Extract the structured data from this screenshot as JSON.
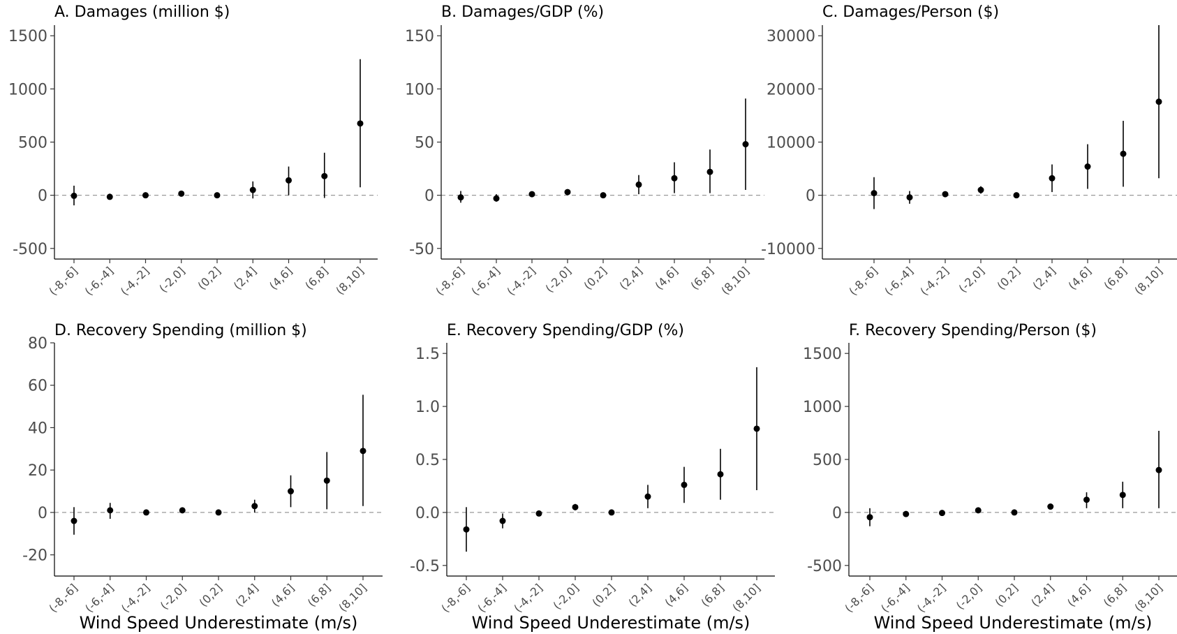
{
  "chart_data": [
    {
      "type": "scatter",
      "title": "A. Damages (million $)",
      "xlabel": "",
      "ylabel": "",
      "categories": [
        "(-8,-6]",
        "(-6,-4]",
        "(-4,-2]",
        "(-2,0]",
        "(0,2]",
        "(2,4]",
        "(4,6]",
        "(6,8]",
        "(8,10]"
      ],
      "values": [
        -5,
        -15,
        0,
        15,
        0,
        50,
        140,
        180,
        675
      ],
      "lower": [
        -95,
        -40,
        -10,
        -10,
        -10,
        -30,
        0,
        -25,
        75
      ],
      "upper": [
        90,
        15,
        10,
        40,
        10,
        130,
        270,
        400,
        1280
      ],
      "ylim": [
        -600,
        1600
      ],
      "yticks": [
        -500,
        0,
        500,
        1000,
        1500
      ],
      "ytick_labels": [
        "-500",
        "0",
        "500",
        "1000",
        "1500"
      ],
      "reference_line": 0
    },
    {
      "type": "scatter",
      "title": "B. Damages/GDP (%)",
      "xlabel": "",
      "ylabel": "",
      "categories": [
        "(-8,-6]",
        "(-6,-4]",
        "(-4,-2]",
        "(-2,0]",
        "(0,2]",
        "(2,4]",
        "(4,6]",
        "(6,8]",
        "(8,10]"
      ],
      "values": [
        -2,
        -3,
        1,
        3,
        0,
        10,
        16,
        22,
        48
      ],
      "lower": [
        -7,
        -6,
        -1,
        1,
        -1,
        1,
        2,
        2,
        5
      ],
      "upper": [
        4,
        1,
        2,
        5,
        1,
        19,
        31,
        43,
        91
      ],
      "ylim": [
        -60,
        160
      ],
      "yticks": [
        -50,
        0,
        50,
        100,
        150
      ],
      "ytick_labels": [
        "-50",
        "0",
        "50",
        "100",
        "150"
      ],
      "reference_line": 0
    },
    {
      "type": "scatter",
      "title": "C. Damages/Person ($)",
      "xlabel": "",
      "ylabel": "",
      "categories": [
        "(-8,-6]",
        "(-6,-4]",
        "(-4,-2]",
        "(-2,0]",
        "(0,2]",
        "(2,4]",
        "(4,6]",
        "(6,8]",
        "(8,10]"
      ],
      "values": [
        400,
        -400,
        200,
        1000,
        0,
        3200,
        5400,
        7800,
        17600
      ],
      "lower": [
        -2600,
        -1600,
        -100,
        300,
        -100,
        600,
        1200,
        1600,
        3200
      ],
      "upper": [
        3400,
        800,
        400,
        1700,
        100,
        5800,
        9600,
        14000,
        32000
      ],
      "ylim": [
        -12000,
        32000
      ],
      "yticks": [
        -10000,
        0,
        10000,
        20000,
        30000
      ],
      "ytick_labels": [
        "-10000",
        "0",
        "10000",
        "20000",
        "30000"
      ],
      "reference_line": 0
    },
    {
      "type": "scatter",
      "title": "D. Recovery Spending (million $)",
      "xlabel": "Wind Speed Underestimate (m/s)",
      "ylabel": "",
      "categories": [
        "(-8,-6]",
        "(-6,-4]",
        "(-4,-2]",
        "(-2,0]",
        "(0,2]",
        "(2,4]",
        "(4,6]",
        "(6,8]",
        "(8,10]"
      ],
      "values": [
        -4,
        1,
        0,
        1,
        0,
        3,
        10,
        15,
        29
      ],
      "lower": [
        -10.5,
        -3,
        -0.5,
        0,
        -0.5,
        0,
        2.5,
        1.5,
        3
      ],
      "upper": [
        2.5,
        4.5,
        0.5,
        2,
        0.5,
        6,
        17.5,
        28.5,
        55.5
      ],
      "ylim": [
        -30,
        80
      ],
      "yticks": [
        -20,
        0,
        20,
        40,
        60,
        80
      ],
      "ytick_labels": [
        "-20",
        "0",
        "20",
        "40",
        "60",
        "80"
      ],
      "reference_line": 0
    },
    {
      "type": "scatter",
      "title": "E. Recovery Spending/GDP (%)",
      "xlabel": "Wind Speed Underestimate (m/s)",
      "ylabel": "",
      "categories": [
        "(-8,-6]",
        "(-6,-4]",
        "(-4,-2]",
        "(-2,0]",
        "(0,2]",
        "(2,4]",
        "(4,6]",
        "(6,8]",
        "(8,10]"
      ],
      "values": [
        -0.16,
        -0.08,
        -0.01,
        0.05,
        0,
        0.15,
        0.26,
        0.36,
        0.79
      ],
      "lower": [
        -0.37,
        -0.15,
        -0.02,
        0.02,
        -0.01,
        0.04,
        0.09,
        0.12,
        0.21
      ],
      "upper": [
        0.05,
        -0.01,
        0,
        0.08,
        0.01,
        0.26,
        0.43,
        0.6,
        1.37
      ],
      "ylim": [
        -0.6,
        1.6
      ],
      "yticks": [
        -0.5,
        0,
        0.5,
        1,
        1.5
      ],
      "ytick_labels": [
        "-0.5",
        "0.0",
        "0.5",
        "1.0",
        "1.5"
      ],
      "reference_line": 0
    },
    {
      "type": "scatter",
      "title": "F. Recovery Spending/Person ($)",
      "xlabel": "Wind Speed Underestimate (m/s)",
      "ylabel": "",
      "categories": [
        "(-8,-6]",
        "(-6,-4]",
        "(-4,-2]",
        "(-2,0]",
        "(0,2]",
        "(2,4]",
        "(4,6]",
        "(6,8]",
        "(8,10]"
      ],
      "values": [
        -45,
        -15,
        -5,
        20,
        0,
        55,
        120,
        165,
        400
      ],
      "lower": [
        -130,
        -30,
        -15,
        5,
        -10,
        30,
        40,
        40,
        40
      ],
      "upper": [
        40,
        0,
        5,
        35,
        10,
        80,
        190,
        290,
        770
      ],
      "ylim": [
        -600,
        1600
      ],
      "yticks": [
        -500,
        0,
        500,
        1000,
        1500
      ],
      "ytick_labels": [
        "-500",
        "0",
        "500",
        "1000",
        "1500"
      ],
      "reference_line": 0
    }
  ]
}
